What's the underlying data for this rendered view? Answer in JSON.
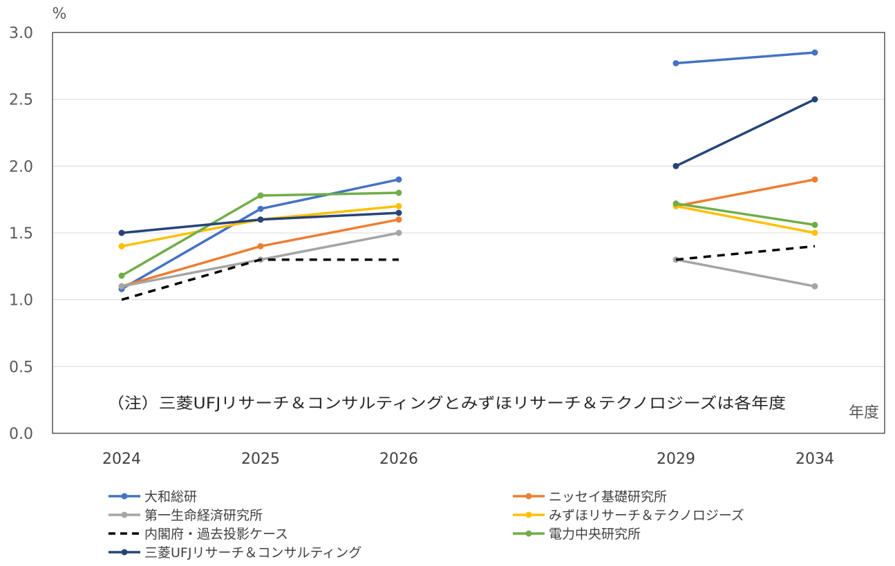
{
  "chart_data": {
    "type": "line",
    "title": "",
    "ylabel": "%",
    "xlabel": "年度",
    "note": "（注）三菱UFJリサーチ＆コンサルティングとみずほリサーチ＆テクノロジーズは各年度",
    "ylim": [
      0,
      3.0
    ],
    "yticks": [
      "0.0",
      "0.5",
      "1.0",
      "1.5",
      "2.0",
      "2.5",
      "3.0"
    ],
    "categories": [
      "2024",
      "2025",
      "2026",
      "2029",
      "2034"
    ],
    "grid": true,
    "legend_position": "bottom",
    "series": [
      {
        "name": "大和総研",
        "color": "#4472C4",
        "dash": false,
        "values": [
          1.08,
          1.68,
          1.9,
          2.77,
          2.85
        ]
      },
      {
        "name": "ニッセイ基礎研究所",
        "color": "#ED7D31",
        "dash": false,
        "values": [
          1.1,
          1.4,
          1.6,
          1.7,
          1.9
        ]
      },
      {
        "name": "第一生命経済研究所",
        "color": "#A5A5A5",
        "dash": false,
        "values": [
          1.1,
          1.3,
          1.5,
          1.3,
          1.1
        ]
      },
      {
        "name": "みずほリサーチ＆テクノロジーズ",
        "color": "#FFC000",
        "dash": false,
        "values": [
          1.4,
          1.6,
          1.7,
          1.7,
          1.5
        ]
      },
      {
        "name": "内閣府・過去投影ケース",
        "color": "#000000",
        "dash": true,
        "values": [
          1.0,
          1.3,
          1.3,
          1.3,
          1.4
        ]
      },
      {
        "name": "電力中央研究所",
        "color": "#70AD47",
        "dash": false,
        "values": [
          1.18,
          1.78,
          1.8,
          1.72,
          1.56
        ]
      },
      {
        "name": "三菱UFJリサーチ＆コンサルティング",
        "color": "#264478",
        "dash": false,
        "values": [
          1.5,
          1.6,
          1.65,
          2.0,
          2.5
        ]
      }
    ]
  }
}
